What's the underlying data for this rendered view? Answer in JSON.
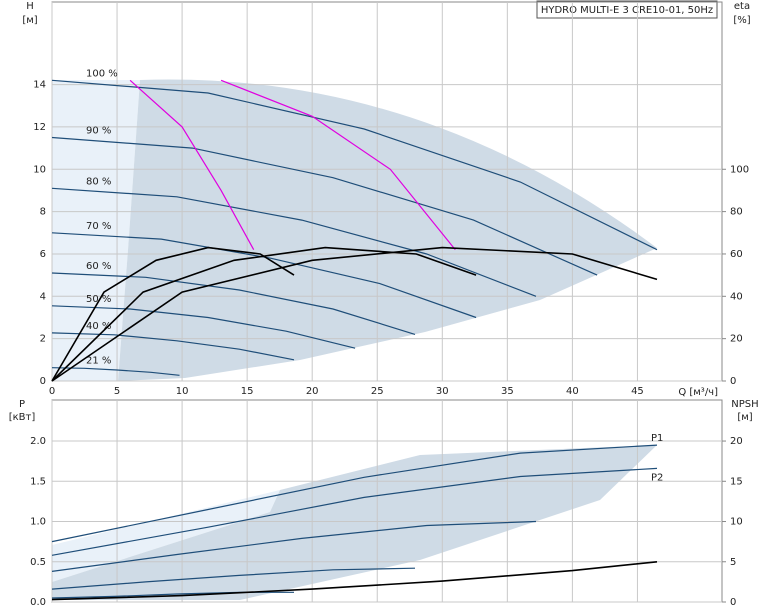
{
  "chart_data": [
    {
      "type": "line",
      "title": "HYDRO MULTI-E 3 CRE10-01, 50Hz",
      "y_label": "H",
      "y_unit": "[м]",
      "y2_label": "eta",
      "y2_unit": "[%]",
      "x_label": "Q [м³/ч]",
      "xlim": [
        0,
        51.5
      ],
      "xticks": [
        0,
        5,
        10,
        15,
        20,
        25,
        30,
        35,
        40,
        45
      ],
      "ylim": [
        0,
        17.9
      ],
      "yticks": [
        0,
        2,
        4,
        6,
        8,
        10,
        12,
        14
      ],
      "y2lim": [
        0,
        179
      ],
      "y2ticks": [
        0,
        20,
        40,
        60,
        80,
        100
      ],
      "grid": true,
      "series": [
        {
          "name": "100 %",
          "color": "#1f4e79",
          "x": [
            0,
            12,
            24,
            36,
            46.5
          ],
          "values": [
            14.2,
            13.6,
            11.9,
            9.4,
            6.2
          ]
        },
        {
          "name": "90 %",
          "color": "#1f4e79",
          "x": [
            0,
            10.8,
            21.6,
            32.4,
            41.9
          ],
          "values": [
            11.5,
            11.0,
            9.6,
            7.6,
            5.0
          ]
        },
        {
          "name": "80 %",
          "color": "#1f4e79",
          "x": [
            0,
            9.6,
            19.2,
            28.8,
            37.2
          ],
          "values": [
            9.1,
            8.7,
            7.6,
            6.0,
            4.0
          ]
        },
        {
          "name": "70 %",
          "color": "#1f4e79",
          "x": [
            0,
            8.4,
            16.8,
            25.2,
            32.6
          ],
          "values": [
            7.0,
            6.7,
            5.8,
            4.6,
            3.0
          ]
        },
        {
          "name": "60 %",
          "color": "#1f4e79",
          "x": [
            0,
            7.2,
            14.4,
            21.6,
            27.9
          ],
          "values": [
            5.1,
            4.9,
            4.3,
            3.4,
            2.2
          ]
        },
        {
          "name": "50 %",
          "color": "#1f4e79",
          "x": [
            0,
            6,
            12,
            18,
            23.3
          ],
          "values": [
            3.55,
            3.4,
            3.0,
            2.35,
            1.55
          ]
        },
        {
          "name": "40 %",
          "color": "#1f4e79",
          "x": [
            0,
            4.8,
            9.6,
            14.4,
            18.6
          ],
          "values": [
            2.27,
            2.18,
            1.9,
            1.5,
            1.0
          ]
        },
        {
          "name": "21 %",
          "color": "#1f4e79",
          "x": [
            0,
            2.5,
            5,
            7.6,
            9.8
          ],
          "values": [
            0.63,
            0.6,
            0.52,
            0.41,
            0.27
          ]
        },
        {
          "color": "#e000e0",
          "x": [
            6,
            10,
            13,
            15.5
          ],
          "values": [
            14.2,
            12,
            9,
            6.2
          ]
        },
        {
          "color": "#e000e0",
          "x": [
            13,
            20,
            26,
            31
          ],
          "values": [
            14.2,
            12.5,
            10,
            6.2
          ]
        },
        {
          "color": "#000000",
          "axis": "y2",
          "x": [
            0,
            10,
            20,
            30,
            40,
            46.5
          ],
          "values": [
            0,
            42,
            57,
            63,
            60,
            48
          ]
        },
        {
          "color": "#000000",
          "axis": "y2",
          "x": [
            0,
            7,
            14,
            21,
            28,
            32.6
          ],
          "values": [
            0,
            42,
            57,
            63,
            60,
            50
          ]
        },
        {
          "color": "#000000",
          "axis": "y2",
          "x": [
            0,
            4,
            8,
            12,
            16,
            18.6
          ],
          "values": [
            0,
            42,
            57,
            63,
            60,
            50
          ]
        }
      ]
    },
    {
      "type": "line",
      "y_label": "P",
      "y_unit": "[кВт]",
      "y2_label": "NPSH",
      "y2_unit": "[м]",
      "xlim": [
        0,
        51.5
      ],
      "xticks": [
        0,
        5,
        10,
        15,
        20,
        25,
        30,
        35,
        40,
        45
      ],
      "ylim": [
        0,
        2.51
      ],
      "yticks": [
        {
          "value": 0,
          "label": "0.0"
        },
        0.5,
        {
          "value": 1,
          "label": "1.0"
        },
        1.5,
        {
          "value": 2,
          "label": "2.0"
        }
      ],
      "y2lim": [
        0,
        25.1
      ],
      "y2ticks": [
        0,
        5,
        10,
        15,
        20
      ],
      "grid": true,
      "series": [
        {
          "name": "P1",
          "color": "#1f4e79",
          "x": [
            0,
            12,
            24,
            36,
            46.5
          ],
          "values": [
            0.75,
            1.15,
            1.55,
            1.85,
            1.95
          ]
        },
        {
          "name": "P2",
          "color": "#1f4e79",
          "x": [
            0,
            12,
            24,
            36,
            46.5
          ],
          "values": [
            0.58,
            0.93,
            1.3,
            1.56,
            1.66
          ]
        },
        {
          "color": "#1f4e79",
          "x": [
            0,
            9.6,
            19.2,
            28.8,
            37.2
          ],
          "values": [
            0.38,
            0.59,
            0.79,
            0.95,
            1.0
          ]
        },
        {
          "color": "#1f4e79",
          "x": [
            0,
            7.2,
            14.4,
            21.6,
            27.9
          ],
          "values": [
            0.16,
            0.25,
            0.33,
            0.4,
            0.42
          ]
        },
        {
          "color": "#1f4e79",
          "x": [
            0,
            4.8,
            9.6,
            14.4,
            18.6
          ],
          "values": [
            0.05,
            0.07,
            0.1,
            0.12,
            0.12
          ]
        },
        {
          "color": "#000000",
          "axis": "y2",
          "x": [
            0,
            10,
            20,
            30,
            40,
            46.5
          ],
          "values": [
            0.3,
            0.8,
            1.6,
            2.6,
            3.9,
            5.0
          ]
        }
      ]
    }
  ]
}
